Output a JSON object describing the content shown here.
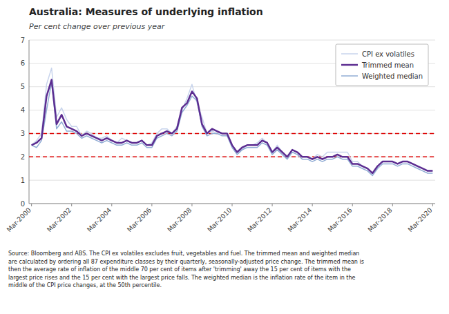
{
  "chart_data": {
    "type": "line",
    "title": "Australia: Measures of underlying inflation",
    "subtitle": "Per cent change over previous year",
    "source": "Source: Bloomberg and ABS.  The CPI ex volatiles excludes fruit, vegetables and fuel.  The trimmed mean and weighted median\nare calculated by ordering all 87 expenditure classes by their quarterly, seasonally-adjusted price change.  The trimmed mean is\nthen the average rate of inflation of the middle 70 per cent of items after 'trimming' away the 15 per cent of items with the\nlargest price rises and the 15 per cent with the largest price falls.  The weighted median is the inflation rate of the item in the\nmiddle of the CPI price changes, at the 50th percentile.",
    "categories": [
      "Mar-2000",
      null,
      null,
      null,
      null,
      null,
      null,
      null,
      "Mar-2002",
      null,
      null,
      null,
      null,
      null,
      null,
      null,
      "Mar-2004",
      null,
      null,
      null,
      null,
      null,
      null,
      null,
      "Mar-2006",
      null,
      null,
      null,
      null,
      null,
      null,
      null,
      "Mar-2008",
      null,
      null,
      null,
      null,
      null,
      null,
      null,
      "Mar-2010",
      null,
      null,
      null,
      null,
      null,
      null,
      null,
      "Mar-2012",
      null,
      null,
      null,
      null,
      null,
      null,
      null,
      "Mar-2014",
      null,
      null,
      null,
      null,
      null,
      null,
      null,
      "Mar-2016",
      null,
      null,
      null,
      null,
      null,
      null,
      null,
      "Mar-2018",
      null,
      null,
      null,
      null,
      null,
      null,
      null,
      "Mar-2020"
    ],
    "series": [
      {
        "name": "CPI ex volatiles",
        "color": "#c8d4ec",
        "values": [
          2.5,
          2.7,
          3.0,
          5.1,
          5.8,
          3.7,
          4.1,
          3.6,
          3.3,
          3.3,
          2.9,
          3.1,
          3.0,
          2.8,
          2.8,
          2.9,
          2.7,
          2.6,
          2.8,
          2.7,
          2.6,
          2.6,
          2.7,
          2.5,
          2.6,
          3.0,
          3.2,
          3.2,
          3.0,
          3.3,
          4.0,
          4.5,
          5.1,
          4.3,
          3.7,
          3.0,
          3.1,
          3.0,
          3.0,
          3.0,
          2.5,
          2.2,
          2.3,
          2.5,
          2.5,
          2.6,
          2.8,
          2.6,
          2.2,
          2.5,
          2.2,
          2.0,
          2.3,
          2.2,
          2.0,
          2.0,
          1.9,
          2.1,
          2.0,
          2.2,
          2.2,
          2.2,
          2.2,
          2.2,
          1.8,
          1.8,
          1.6,
          1.5,
          1.3,
          1.6,
          1.8,
          1.8,
          1.8,
          1.7,
          1.8,
          1.8,
          1.7,
          1.6,
          1.5,
          1.4,
          1.4
        ]
      },
      {
        "name": "Trimmed mean",
        "color": "#5c2d91",
        "values": [
          2.5,
          2.6,
          2.8,
          4.6,
          5.3,
          3.4,
          3.8,
          3.3,
          3.2,
          3.1,
          2.9,
          3.0,
          2.9,
          2.8,
          2.7,
          2.8,
          2.7,
          2.6,
          2.6,
          2.7,
          2.6,
          2.6,
          2.7,
          2.5,
          2.5,
          2.9,
          3.0,
          3.1,
          3.0,
          3.2,
          4.1,
          4.3,
          4.8,
          4.5,
          3.4,
          3.0,
          3.2,
          3.1,
          3.0,
          3.0,
          2.5,
          2.2,
          2.4,
          2.5,
          2.5,
          2.5,
          2.7,
          2.6,
          2.2,
          2.4,
          2.2,
          2.0,
          2.3,
          2.2,
          2.0,
          2.0,
          1.9,
          2.0,
          1.9,
          2.0,
          2.0,
          2.1,
          2.0,
          2.0,
          1.7,
          1.7,
          1.6,
          1.5,
          1.3,
          1.6,
          1.8,
          1.8,
          1.8,
          1.7,
          1.8,
          1.8,
          1.7,
          1.6,
          1.5,
          1.4,
          1.4
        ]
      },
      {
        "name": "Weighted median",
        "color": "#90acd4",
        "values": [
          2.5,
          2.4,
          2.7,
          4.0,
          5.2,
          3.2,
          3.5,
          3.1,
          3.1,
          3.0,
          2.8,
          2.9,
          2.8,
          2.7,
          2.6,
          2.7,
          2.6,
          2.5,
          2.5,
          2.6,
          2.5,
          2.5,
          2.6,
          2.4,
          2.4,
          2.8,
          2.9,
          3.0,
          2.9,
          3.1,
          3.9,
          4.2,
          4.6,
          4.4,
          3.3,
          2.9,
          3.0,
          3.0,
          2.9,
          2.9,
          2.4,
          2.1,
          2.3,
          2.4,
          2.4,
          2.4,
          2.6,
          2.5,
          2.1,
          2.3,
          2.1,
          1.9,
          2.2,
          2.1,
          1.9,
          1.9,
          1.8,
          1.9,
          1.8,
          1.9,
          1.9,
          2.0,
          1.9,
          1.9,
          1.6,
          1.6,
          1.5,
          1.4,
          1.2,
          1.5,
          1.7,
          1.7,
          1.7,
          1.6,
          1.7,
          1.7,
          1.6,
          1.5,
          1.4,
          1.3,
          1.3
        ]
      }
    ],
    "hlines": [
      {
        "value": 2.0,
        "color": "#dd0000",
        "line_style": "dashed"
      },
      {
        "value": 3.0,
        "color": "#dd0000",
        "line_style": "dashed"
      }
    ],
    "ylim": [
      0,
      7
    ],
    "yticks": [
      0,
      1,
      2,
      3,
      4,
      5,
      6,
      7
    ],
    "grid": true,
    "legend": "upper right"
  }
}
